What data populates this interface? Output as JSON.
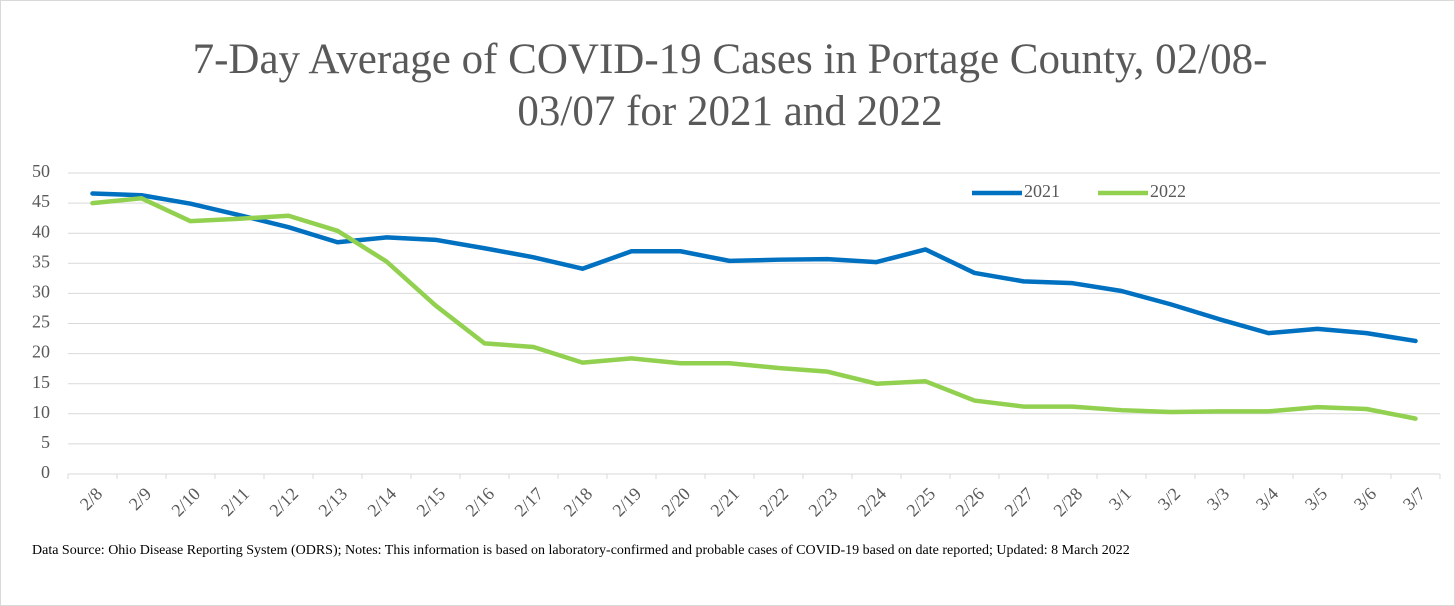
{
  "chart_data": {
    "type": "line",
    "title": "7-Day Average of COVID-19 Cases in Portage County, 02/08-03/07 for 2021 and 2022",
    "note": "Data Source: Ohio Disease Reporting System (ODRS); Notes: This information is based on laboratory-confirmed and probable cases of COVID-19 based on date reported; Updated: 8 March 2022",
    "categories": [
      "2/8",
      "2/9",
      "2/10",
      "2/11",
      "2/12",
      "2/13",
      "2/14",
      "2/15",
      "2/16",
      "2/17",
      "2/18",
      "2/19",
      "2/20",
      "2/21",
      "2/22",
      "2/23",
      "2/24",
      "2/25",
      "2/26",
      "2/27",
      "2/28",
      "3/1",
      "3/2",
      "3/3",
      "3/4",
      "3/5",
      "3/6",
      "3/7"
    ],
    "series": [
      {
        "name": "2021",
        "color": "#0070c0",
        "values": [
          46.6,
          46.3,
          44.9,
          43.0,
          41.0,
          38.5,
          39.3,
          38.9,
          37.5,
          36.0,
          34.1,
          37.0,
          37.0,
          35.4,
          35.6,
          35.7,
          35.2,
          37.3,
          33.4,
          32.0,
          31.7,
          30.4,
          28.2,
          25.7,
          23.4,
          24.1,
          23.4,
          22.1
        ]
      },
      {
        "name": "2022",
        "color": "#92d050",
        "values": [
          45.0,
          45.8,
          42.0,
          42.4,
          42.9,
          40.4,
          35.3,
          28.0,
          21.7,
          21.1,
          18.5,
          19.2,
          18.4,
          18.4,
          17.6,
          17.0,
          15.0,
          15.4,
          12.2,
          11.2,
          11.2,
          10.6,
          10.3,
          10.4,
          10.4,
          11.1,
          10.8,
          9.2
        ]
      }
    ],
    "ylim": [
      0,
      50
    ],
    "yticks": [
      0,
      5,
      10,
      15,
      20,
      25,
      30,
      35,
      40,
      45,
      50
    ],
    "grid": true,
    "legend": "top-right"
  }
}
